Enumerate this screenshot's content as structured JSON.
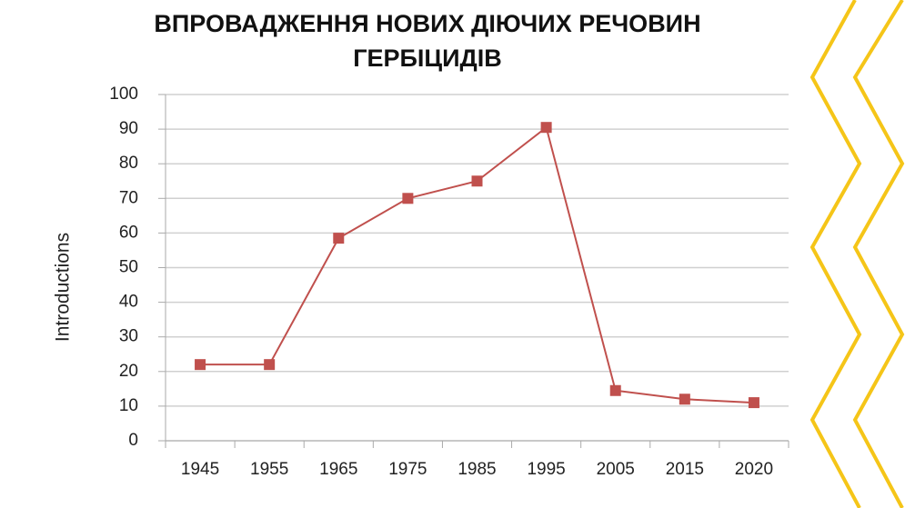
{
  "chart_data": {
    "type": "line",
    "title": [
      "ВПРОВАДЖЕННЯ НОВИХ ДІЮЧИХ РЕЧОВИН",
      "ГЕРБІЦИДІВ"
    ],
    "ylabel": "Introductions",
    "categories": [
      "1945",
      "1955",
      "1965",
      "1975",
      "1985",
      "1995",
      "2005",
      "2015",
      "2020"
    ],
    "values": [
      22,
      22,
      58.5,
      70,
      75,
      90.5,
      14.5,
      12,
      11
    ],
    "color": "#c0504d",
    "ylim": [
      0,
      100
    ],
    "yticks": [
      0,
      10,
      20,
      30,
      40,
      50,
      60,
      70,
      80,
      90,
      100
    ],
    "grid": true
  }
}
